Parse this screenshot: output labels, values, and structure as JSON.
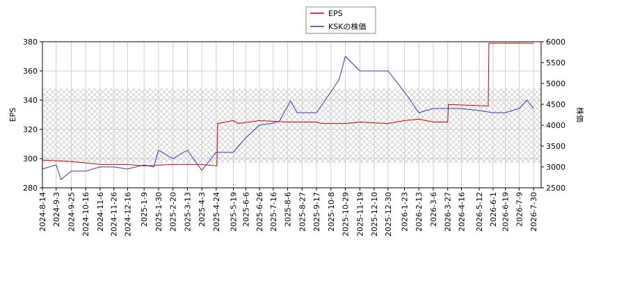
{
  "chart_data": {
    "type": "line",
    "y_label": "EPS",
    "y2_label": "株価",
    "xlim": [
      "2024-8-14",
      "2026-8-10"
    ],
    "xticks": [
      "2024-8-14",
      "2024-9-3",
      "2024-9-25",
      "2024-10-16",
      "2024-11-6",
      "2024-11-26",
      "2024-12-16",
      "2025-1-9",
      "2025-1-30",
      "2025-2-20",
      "2025-3-13",
      "2025-4-3",
      "2025-4-24",
      "2025-5-19",
      "2025-6-6",
      "2025-6-26",
      "2025-7-16",
      "2025-8-6",
      "2025-8-27",
      "2025-9-17",
      "2025-10-8",
      "2025-10-29",
      "2025-11-19",
      "2025-12-10",
      "2025-12-30",
      "2026-1-23",
      "2026-2-13",
      "2026-3-6",
      "2026-3-27",
      "2026-4-16",
      "2026-5-12",
      "2026-6-1",
      "2026-6-19",
      "2026-7-9",
      "2026-7-30"
    ],
    "ylim": [
      280,
      380
    ],
    "yticks": [
      280,
      300,
      320,
      340,
      360,
      380
    ],
    "y2lim": [
      2500,
      6000
    ],
    "y2ticks": [
      2500,
      3000,
      3500,
      4000,
      4500,
      5000,
      5500,
      6000
    ],
    "grid": true,
    "shaded_range": [
      297,
      348
    ],
    "series": [
      {
        "name": "EPS",
        "color": "#cc0000",
        "x": [
          "2024-8-14",
          "2024-9-25",
          "2024-10-16",
          "2024-11-6",
          "2024-12-16",
          "2025-1-9",
          "2025-2-20",
          "2025-4-3",
          "2025-4-25",
          "2025-4-26",
          "2025-5-19",
          "2025-5-26",
          "2025-6-26",
          "2025-8-6",
          "2025-9-17",
          "2025-9-25",
          "2025-10-29",
          "2025-11-19",
          "2025-12-30",
          "2026-1-23",
          "2026-2-13",
          "2026-3-6",
          "2026-3-27",
          "2026-3-28",
          "2026-5-25",
          "2026-5-26",
          "2026-7-30"
        ],
        "values": [
          299,
          298,
          297,
          296,
          296,
          295,
          296,
          296,
          295,
          324,
          326,
          324,
          326,
          325,
          325,
          324,
          324,
          325,
          324,
          326,
          327,
          325,
          325,
          337,
          336,
          379,
          379
        ]
      },
      {
        "name": "KSKの株価",
        "color": "#3333cc",
        "axis": "y2",
        "x": [
          "2024-8-14",
          "2024-9-3",
          "2024-9-10",
          "2024-9-25",
          "2024-10-16",
          "2024-11-6",
          "2024-11-26",
          "2024-12-16",
          "2025-1-9",
          "2025-1-23",
          "2025-1-30",
          "2025-2-20",
          "2025-3-13",
          "2025-4-3",
          "2025-4-24",
          "2025-5-19",
          "2025-6-6",
          "2025-6-26",
          "2025-7-16",
          "2025-7-25",
          "2025-8-10",
          "2025-8-20",
          "2025-8-27",
          "2025-9-17",
          "2025-10-8",
          "2025-10-20",
          "2025-10-29",
          "2025-11-19",
          "2025-12-10",
          "2025-12-30",
          "2026-1-23",
          "2026-2-13",
          "2026-3-6",
          "2026-3-27",
          "2026-4-16",
          "2026-5-12",
          "2026-6-1",
          "2026-6-19",
          "2026-7-9",
          "2026-7-20",
          "2026-7-30"
        ],
        "values": [
          2950,
          3050,
          2700,
          2900,
          2900,
          3000,
          3000,
          2950,
          3050,
          3000,
          3400,
          3200,
          3400,
          2920,
          3350,
          3350,
          3700,
          4000,
          4050,
          4100,
          4580,
          4300,
          4300,
          4300,
          4800,
          5100,
          5650,
          5300,
          5300,
          5300,
          4800,
          4300,
          4400,
          4400,
          4400,
          4350,
          4300,
          4300,
          4400,
          4600,
          4400
        ]
      }
    ]
  }
}
